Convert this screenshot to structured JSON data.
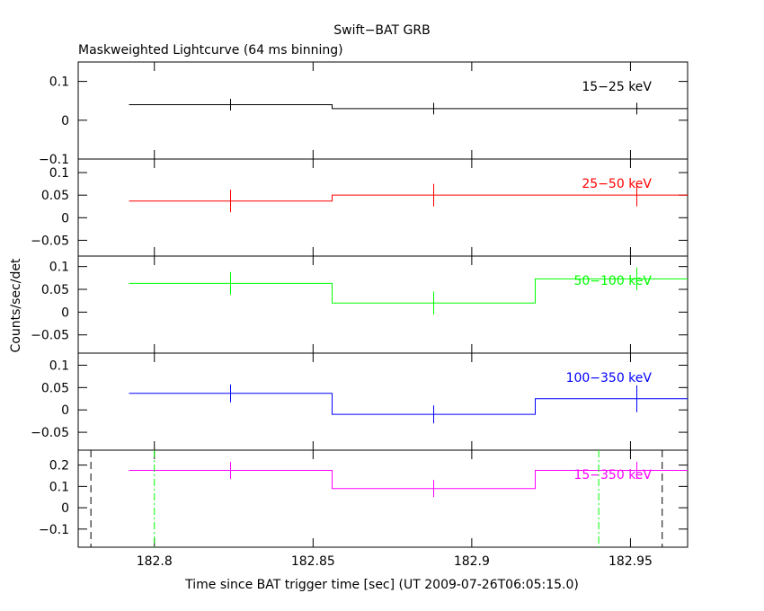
{
  "chart_data": {
    "type": "line",
    "title": "Swift−BAT GRB",
    "subtitle": "Maskweighted Lightcurve (64 ms binning)",
    "xlabel": "Time since BAT trigger time [sec] (UT 2009-07-26T06:05:15.0)",
    "ylabel": "Counts/sec/det",
    "xlim": [
      182.776,
      182.968
    ],
    "x_ticks": [
      "182.8",
      "182.85",
      "182.9",
      "182.95"
    ],
    "bin_edges": [
      182.792,
      182.856,
      182.92,
      182.984
    ],
    "bin_centers": [
      182.824,
      182.888,
      182.952
    ],
    "panels": [
      {
        "name": "15−25 keV",
        "color": "#000000",
        "ylim": [
          -0.1,
          0.15
        ],
        "ticks": [
          {
            "v": 0.1,
            "label": "0.1"
          },
          {
            "v": 0,
            "label": "0"
          },
          {
            "v": -0.1,
            "label": "−0.1"
          }
        ],
        "values": [
          0.04,
          0.03,
          0.03
        ],
        "errors": [
          0.015,
          0.015,
          0.015
        ]
      },
      {
        "name": "25−50 keV",
        "color": "#ff0000",
        "ylim": [
          -0.085,
          0.13
        ],
        "ticks": [
          {
            "v": 0.1,
            "label": "0.1"
          },
          {
            "v": 0.05,
            "label": "0.05"
          },
          {
            "v": 0,
            "label": "0"
          },
          {
            "v": -0.05,
            "label": "−0.05"
          }
        ],
        "values": [
          0.037,
          0.05,
          0.05
        ],
        "errors": [
          0.025,
          0.025,
          0.025
        ]
      },
      {
        "name": "50−100 keV",
        "color": "#00ff00",
        "ylim": [
          -0.09,
          0.123
        ],
        "ticks": [
          {
            "v": 0.1,
            "label": "0.1"
          },
          {
            "v": 0.05,
            "label": "0.05"
          },
          {
            "v": 0,
            "label": "0"
          },
          {
            "v": -0.05,
            "label": "−0.05"
          }
        ],
        "values": [
          0.063,
          0.02,
          0.073
        ],
        "errors": [
          0.025,
          0.025,
          0.025
        ]
      },
      {
        "name": "100−350 keV",
        "color": "#0000ff",
        "ylim": [
          -0.09,
          0.127
        ],
        "ticks": [
          {
            "v": 0.1,
            "label": "0.1"
          },
          {
            "v": 0.05,
            "label": "0.05"
          },
          {
            "v": 0,
            "label": "0"
          },
          {
            "v": -0.05,
            "label": "−0.05"
          }
        ],
        "values": [
          0.037,
          -0.01,
          0.025
        ],
        "errors": [
          0.02,
          0.02,
          0.03
        ]
      },
      {
        "name": "15−350 keV",
        "color": "#ff00ff",
        "ylim": [
          -0.185,
          0.27
        ],
        "ticks": [
          {
            "v": 0.2,
            "label": "0.2"
          },
          {
            "v": 0.1,
            "label": "0.1"
          },
          {
            "v": 0,
            "label": "0"
          },
          {
            "v": -0.1,
            "label": "−0.1"
          }
        ],
        "values": [
          0.175,
          0.09,
          0.175
        ],
        "errors": [
          0.04,
          0.04,
          0.04
        ]
      }
    ],
    "vlines": [
      {
        "x": 182.78,
        "style": "dashed",
        "color": "#000000"
      },
      {
        "x": 182.8,
        "style": "dashdot",
        "color": "#00ff00"
      },
      {
        "x": 182.94,
        "style": "dashdot",
        "color": "#00ff00"
      },
      {
        "x": 182.96,
        "style": "dashed",
        "color": "#000000"
      }
    ]
  }
}
